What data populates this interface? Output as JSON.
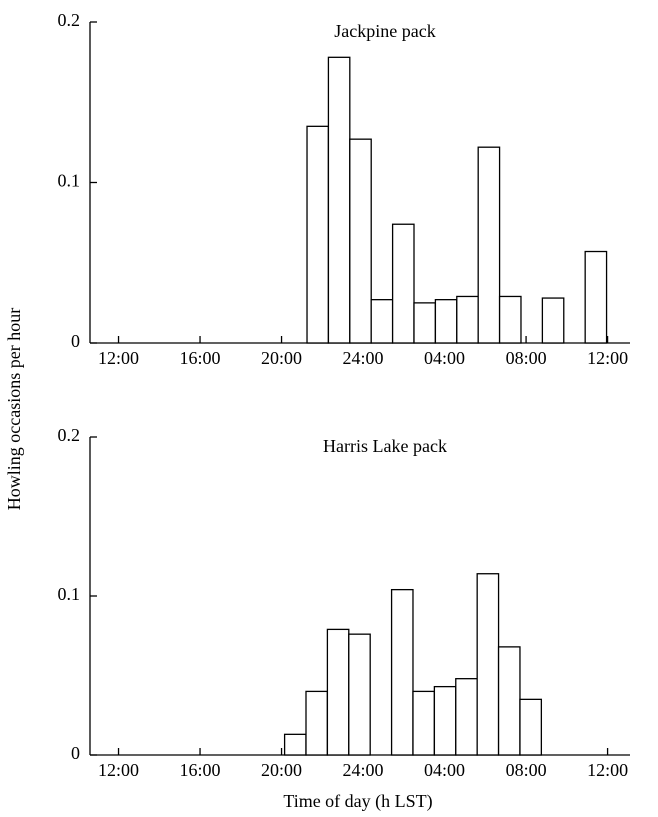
{
  "chart_data": [
    {
      "type": "histogram",
      "title": "Jackpine pack",
      "ylabel": "Howling occasions per hour",
      "bins": [
        21.25,
        22.3,
        23.35,
        24.4,
        25.45,
        26.5,
        27.55,
        28.6,
        29.65,
        30.7,
        31.75,
        32.8,
        33.85,
        34.9,
        35.95
      ],
      "values": [
        0.135,
        0.178,
        0.127,
        0.027,
        0.074,
        0.025,
        0.027,
        0.029,
        0.122,
        0.029,
        0,
        0.028,
        0,
        0.057
      ],
      "color": "#ffffff",
      "xlim": [
        10.6,
        37.1
      ],
      "ylim": [
        0,
        0.2
      ],
      "xticks": [
        {
          "value": 12,
          "label": "12:00"
        },
        {
          "value": 16,
          "label": "16:00"
        },
        {
          "value": 20,
          "label": "20:00"
        },
        {
          "value": 24,
          "label": "24:00"
        },
        {
          "value": 28,
          "label": "04:00"
        },
        {
          "value": 32,
          "label": "08:00"
        },
        {
          "value": 36,
          "label": "12:00"
        }
      ],
      "yticks": [
        0,
        0.1,
        0.2
      ]
    },
    {
      "type": "histogram",
      "title": "Harris Lake pack",
      "xlabel": "Time of day (h LST)",
      "bins": [
        20.15,
        21.2,
        22.25,
        23.3,
        24.35,
        25.4,
        26.45,
        27.5,
        28.55,
        29.6,
        30.65,
        31.7,
        32.75
      ],
      "values": [
        0.013,
        0.04,
        0.079,
        0.076,
        0,
        0.104,
        0.04,
        0.043,
        0.048,
        0.114,
        0.068,
        0.035
      ],
      "color": "#ffffff",
      "xlim": [
        10.6,
        37.1
      ],
      "ylim": [
        0,
        0.2
      ],
      "xticks": [
        {
          "value": 12,
          "label": "12:00"
        },
        {
          "value": 16,
          "label": "16:00"
        },
        {
          "value": 20,
          "label": "20:00"
        },
        {
          "value": 24,
          "label": "24:00"
        },
        {
          "value": 28,
          "label": "04:00"
        },
        {
          "value": 32,
          "label": "08:00"
        },
        {
          "value": 36,
          "label": "12:00"
        }
      ],
      "yticks": [
        0,
        0.1,
        0.2
      ]
    }
  ]
}
